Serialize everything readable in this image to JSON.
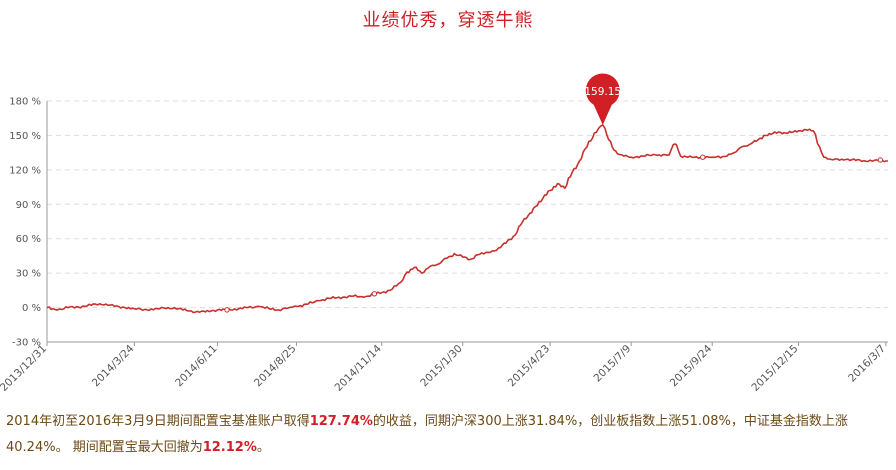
{
  "title": "业绩优秀，穿透牛熊",
  "colors": {
    "accent": "#d01f25",
    "line": "#c8302c",
    "note_text": "#6b4a16",
    "grid": "#dddddd"
  },
  "chart_data": {
    "type": "line",
    "ylim": [
      -30,
      180
    ],
    "y_ticks": [
      -30,
      0,
      30,
      60,
      90,
      120,
      150,
      180
    ],
    "y_tick_labels": [
      "-30 %",
      "0 %",
      "30 %",
      "60 %",
      "90 %",
      "120 %",
      "150 %",
      "180 %"
    ],
    "x_tick_labels": [
      "2013/12/31",
      "2014/3/24",
      "2014/6/11",
      "2014/8/25",
      "2014/11/14",
      "2015/1/30",
      "2015/4/23",
      "2015/7/9",
      "2015/9/24",
      "2015/12/15",
      "2016/3/7"
    ],
    "grid": true,
    "peak": {
      "label": "159.15",
      "value": 159.15,
      "date": "2015-06-12"
    },
    "series": [
      {
        "points": [
          [
            "2013-12-31",
            0
          ],
          [
            "2014-01-10",
            -2
          ],
          [
            "2014-01-20",
            0
          ],
          [
            "2014-02-05",
            1
          ],
          [
            "2014-02-15",
            3
          ],
          [
            "2014-02-25",
            3
          ],
          [
            "2014-03-05",
            1
          ],
          [
            "2014-03-15",
            0
          ],
          [
            "2014-03-24",
            -1
          ],
          [
            "2014-04-05",
            -2
          ],
          [
            "2014-04-15",
            -1
          ],
          [
            "2014-04-25",
            0
          ],
          [
            "2014-05-05",
            -1
          ],
          [
            "2014-05-15",
            -3
          ],
          [
            "2014-05-25",
            -4
          ],
          [
            "2014-06-05",
            -3
          ],
          [
            "2014-06-11",
            -2
          ],
          [
            "2014-06-20",
            -2
          ],
          [
            "2014-07-01",
            -1
          ],
          [
            "2014-07-10",
            0
          ],
          [
            "2014-07-20",
            1
          ],
          [
            "2014-07-30",
            -1
          ],
          [
            "2014-08-08",
            -2
          ],
          [
            "2014-08-18",
            0
          ],
          [
            "2014-08-25",
            1
          ],
          [
            "2014-09-05",
            3
          ],
          [
            "2014-09-15",
            6
          ],
          [
            "2014-09-25",
            8
          ],
          [
            "2014-10-08",
            9
          ],
          [
            "2014-10-18",
            10
          ],
          [
            "2014-10-28",
            9
          ],
          [
            "2014-11-07",
            12
          ],
          [
            "2014-11-14",
            13
          ],
          [
            "2014-11-24",
            16
          ],
          [
            "2014-12-02",
            22
          ],
          [
            "2014-12-08",
            31
          ],
          [
            "2014-12-15",
            35
          ],
          [
            "2014-12-22",
            30
          ],
          [
            "2014-12-30",
            36
          ],
          [
            "2015-01-07",
            38
          ],
          [
            "2015-01-15",
            43
          ],
          [
            "2015-01-22",
            47
          ],
          [
            "2015-01-30",
            44
          ],
          [
            "2015-02-06",
            42
          ],
          [
            "2015-02-13",
            46
          ],
          [
            "2015-02-25",
            48
          ],
          [
            "2015-03-05",
            52
          ],
          [
            "2015-03-12",
            56
          ],
          [
            "2015-03-19",
            62
          ],
          [
            "2015-03-26",
            72
          ],
          [
            "2015-04-02",
            80
          ],
          [
            "2015-04-09",
            88
          ],
          [
            "2015-04-16",
            95
          ],
          [
            "2015-04-23",
            102
          ],
          [
            "2015-04-30",
            108
          ],
          [
            "2015-05-07",
            104
          ],
          [
            "2015-05-14",
            118
          ],
          [
            "2015-05-21",
            128
          ],
          [
            "2015-05-28",
            140
          ],
          [
            "2015-06-04",
            152
          ],
          [
            "2015-06-08",
            156
          ],
          [
            "2015-06-12",
            159.15
          ],
          [
            "2015-06-16",
            150
          ],
          [
            "2015-06-21",
            140
          ],
          [
            "2015-06-26",
            134
          ],
          [
            "2015-07-02",
            132
          ],
          [
            "2015-07-09",
            131
          ],
          [
            "2015-07-20",
            132
          ],
          [
            "2015-08-01",
            133
          ],
          [
            "2015-08-14",
            133
          ],
          [
            "2015-08-18",
            142
          ],
          [
            "2015-08-21",
            142
          ],
          [
            "2015-08-25",
            132
          ],
          [
            "2015-09-01",
            131
          ],
          [
            "2015-09-15",
            131
          ],
          [
            "2015-09-24",
            131
          ],
          [
            "2015-10-08",
            132
          ],
          [
            "2015-10-15",
            135
          ],
          [
            "2015-10-22",
            140
          ],
          [
            "2015-10-29",
            142
          ],
          [
            "2015-11-05",
            145
          ],
          [
            "2015-11-12",
            150
          ],
          [
            "2015-11-19",
            151
          ],
          [
            "2015-11-26",
            153
          ],
          [
            "2015-12-03",
            152
          ],
          [
            "2015-12-10",
            153
          ],
          [
            "2015-12-15",
            154
          ],
          [
            "2015-12-22",
            155
          ],
          [
            "2015-12-29",
            154
          ],
          [
            "2016-01-04",
            140
          ],
          [
            "2016-01-08",
            131
          ],
          [
            "2016-01-15",
            129
          ],
          [
            "2016-01-29",
            129
          ],
          [
            "2016-02-15",
            128
          ],
          [
            "2016-02-29",
            128
          ],
          [
            "2016-03-07",
            127.74
          ],
          [
            "2016-03-09",
            127.74
          ]
        ]
      }
    ]
  },
  "summary": {
    "part1": "2014年初至2016年3月9日期间配置宝基准账户取得",
    "return_pct": "127.74%",
    "part2": "的收益，同期沪深300上涨31.84%，创业板指数上涨51.08%，中证基金指数上涨40.24%。 期间配置宝最大回撤为",
    "drawdown_pct": "12.12%",
    "part3": "。"
  }
}
